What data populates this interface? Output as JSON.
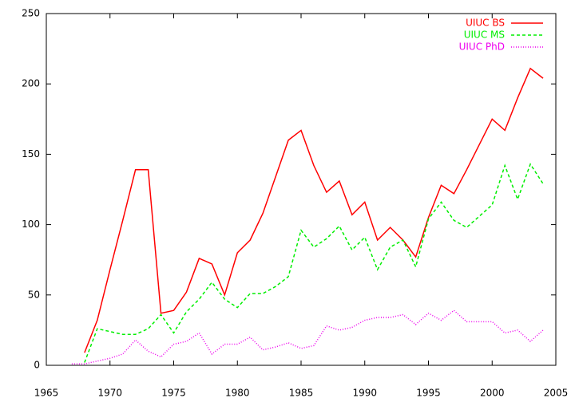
{
  "chart_data": {
    "type": "line",
    "x": [
      1967,
      1968,
      1969,
      1970,
      1971,
      1972,
      1973,
      1974,
      1975,
      1976,
      1977,
      1978,
      1979,
      1980,
      1981,
      1982,
      1983,
      1984,
      1985,
      1986,
      1987,
      1988,
      1989,
      1990,
      1991,
      1992,
      1993,
      1994,
      1995,
      1996,
      1997,
      1998,
      1999,
      2000,
      2001,
      2002,
      2003,
      2004
    ],
    "series": [
      {
        "name": "UIUC BS",
        "color": "#ff0000",
        "dash": "solid",
        "values": [
          null,
          9,
          32,
          68,
          103,
          139,
          139,
          37,
          39,
          52,
          76,
          72,
          50,
          80,
          89,
          108,
          134,
          160,
          167,
          142,
          123,
          131,
          107,
          116,
          89,
          98,
          89,
          77,
          105,
          128,
          122,
          139,
          157,
          175,
          167,
          190,
          211,
          204
        ]
      },
      {
        "name": "UIUC MS",
        "color": "#00ee00",
        "dash": "dashed",
        "values": [
          null,
          2,
          26,
          24,
          22,
          22,
          26,
          36,
          23,
          38,
          47,
          59,
          47,
          41,
          51,
          51,
          56,
          63,
          96,
          84,
          90,
          99,
          82,
          91,
          68,
          84,
          89,
          70,
          104,
          116,
          103,
          98,
          106,
          114,
          142,
          118,
          143,
          129
        ]
      },
      {
        "name": "UIUC PhD",
        "color": "#ee00ee",
        "dash": "dotted",
        "values": [
          1,
          1,
          3,
          5,
          8,
          18,
          10,
          6,
          15,
          17,
          23,
          8,
          15,
          15,
          20,
          11,
          13,
          16,
          12,
          14,
          28,
          25,
          27,
          32,
          34,
          34,
          36,
          29,
          37,
          32,
          39,
          31,
          31,
          31,
          23,
          25,
          17,
          25
        ]
      }
    ],
    "xlim": [
      1965,
      2005
    ],
    "xticks": [
      1965,
      1970,
      1975,
      1980,
      1985,
      1990,
      1995,
      2000,
      2005
    ],
    "ylim": [
      0,
      250
    ],
    "yticks": [
      0,
      50,
      100,
      150,
      200,
      250
    ],
    "legend": "top-right"
  }
}
